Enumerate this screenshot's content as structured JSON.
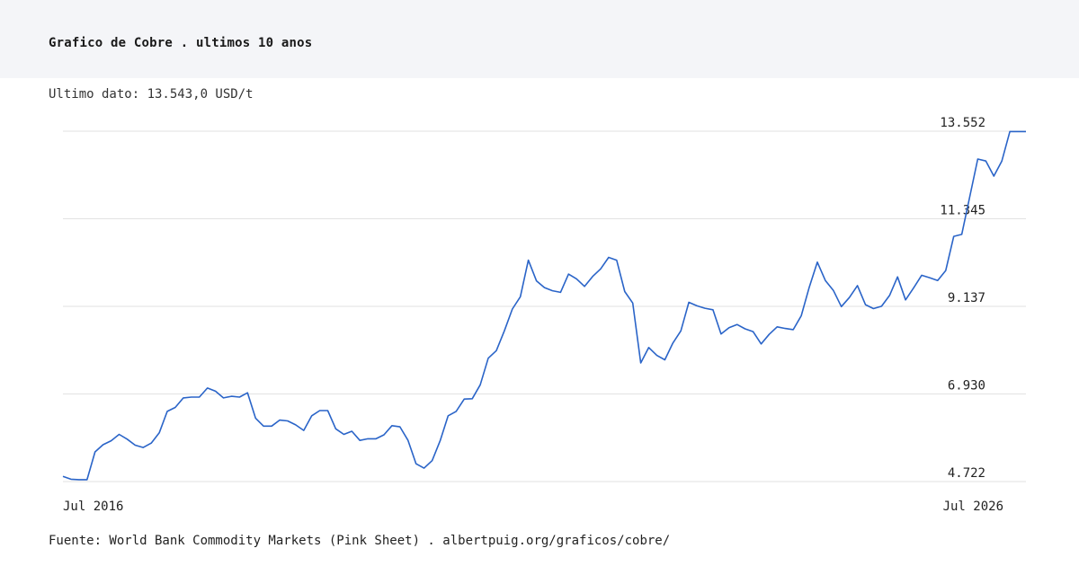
{
  "header": {
    "title": "Grafico de Cobre . ultimos 10 anos"
  },
  "last_value_label": "Ultimo dato: 13.543,0 USD/t",
  "footer": {
    "source": "Fuente: World Bank Commodity Markets (Pink Sheet) . albertpuig.org/graficos/cobre/"
  },
  "colors": {
    "line": "#2a64c8",
    "grid": "#e2e2e2",
    "header_bg": "#f4f5f8"
  },
  "chart_data": {
    "type": "line",
    "title": "Grafico de Cobre . ultimos 10 anos",
    "xlabel": "",
    "ylabel": "",
    "unit": "USD/t",
    "x_range": [
      "2016-07",
      "2026-07"
    ],
    "ylim": [
      4722,
      13552
    ],
    "yticks": [
      4722,
      6930,
      9137,
      11345,
      13552
    ],
    "ytick_labels": [
      "4.722",
      "6.930",
      "9.137",
      "11.345",
      "13.552"
    ],
    "xtick_labels": [
      "Jul 2016",
      "Jul 2026"
    ],
    "grid": true,
    "series": [
      {
        "values": [
          4850,
          4780,
          4770,
          4770,
          5470,
          5650,
          5750,
          5910,
          5790,
          5640,
          5580,
          5690,
          5950,
          6490,
          6590,
          6830,
          6850,
          6850,
          7080,
          7000,
          6830,
          6870,
          6850,
          6960,
          6320,
          6120,
          6120,
          6270,
          6250,
          6150,
          6010,
          6380,
          6510,
          6510,
          6050,
          5910,
          5990,
          5760,
          5800,
          5800,
          5900,
          6130,
          6100,
          5760,
          5170,
          5060,
          5250,
          5750,
          6380,
          6490,
          6800,
          6810,
          7160,
          7830,
          8020,
          8520,
          9070,
          9380,
          10300,
          9780,
          9610,
          9530,
          9490,
          9950,
          9830,
          9640,
          9890,
          10080,
          10370,
          10300,
          9510,
          9220,
          7710,
          8100,
          7900,
          7790,
          8210,
          8520,
          9240,
          9150,
          9090,
          9050,
          8440,
          8600,
          8680,
          8570,
          8500,
          8190,
          8430,
          8620,
          8580,
          8550,
          8900,
          9620,
          10250,
          9790,
          9540,
          9130,
          9360,
          9660,
          9180,
          9080,
          9140,
          9410,
          9880,
          9300,
          9600,
          9920,
          9860,
          9790,
          10040,
          10900,
          10950,
          11900,
          12850,
          12800,
          12420,
          12800,
          13543,
          13543,
          13543
        ]
      }
    ]
  }
}
